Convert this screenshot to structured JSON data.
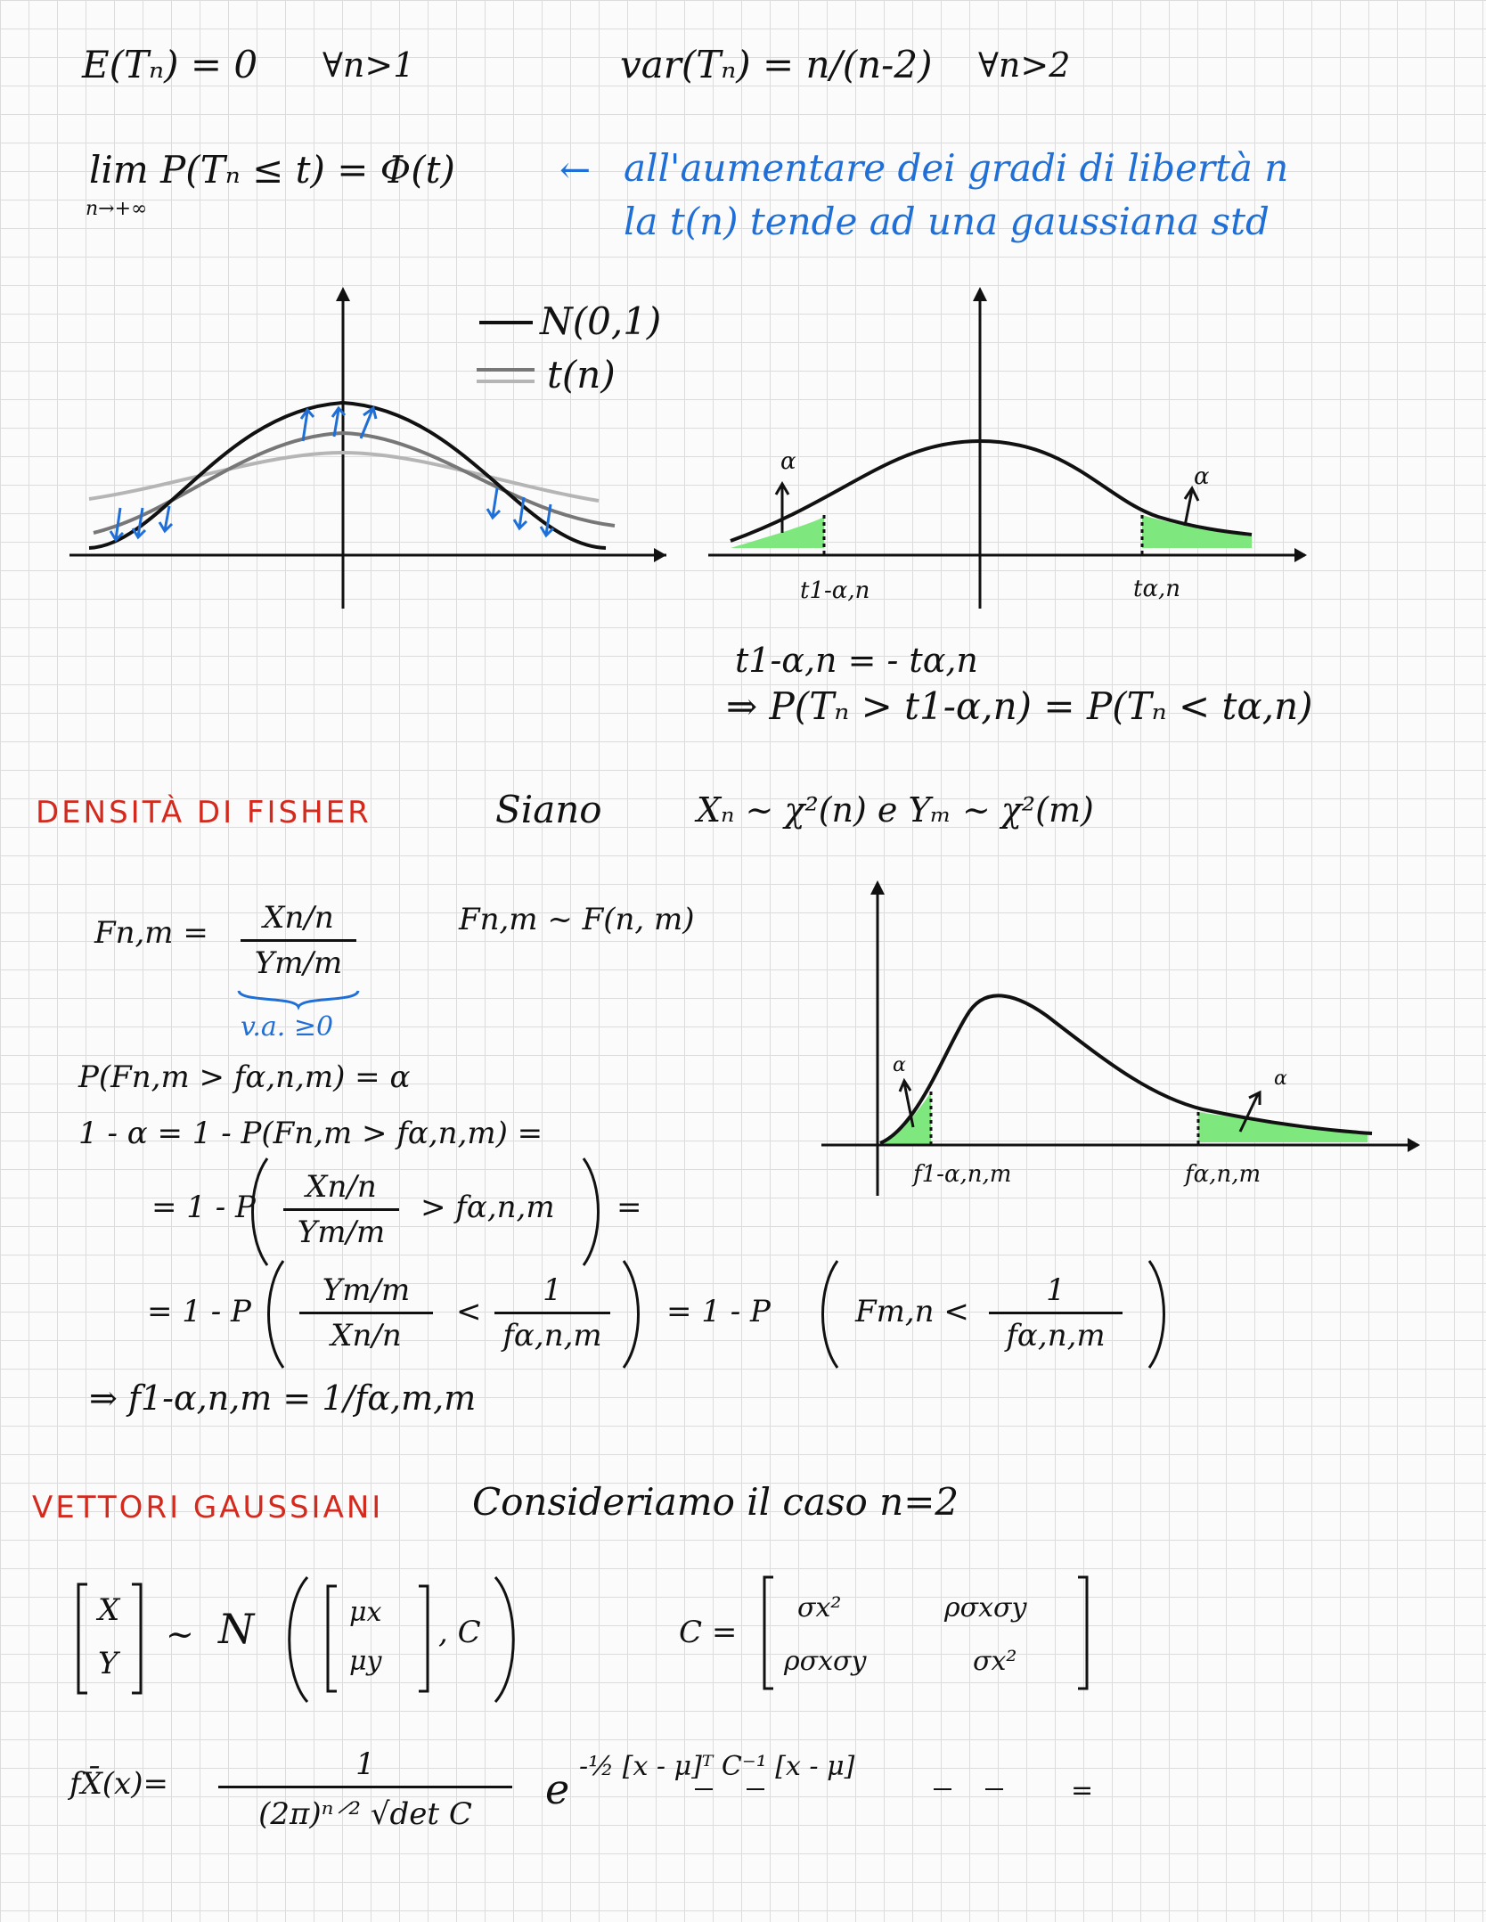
{
  "line1": {
    "expectation": "E(Tₙ) = 0",
    "expectation_cond": "∀n>1",
    "variance": "var(Tₙ) = n/(n-2)",
    "variance_cond": "∀n>2"
  },
  "limit": {
    "expr": "lim P(Tₙ ≤ t) = Φ(t)",
    "sub": "n→+∞",
    "arrow": "←",
    "note_line1": "all'aumentare dei gradi di libertà n",
    "note_line2": "la t(n) tende ad una gaussiana std"
  },
  "plot1": {
    "legend_normal": "N(0,1)",
    "legend_t": "t(n)"
  },
  "plot2": {
    "alpha_left": "α",
    "alpha_right": "α",
    "tick_left": "t1-α,n",
    "tick_right": "tα,n",
    "relation1": "t1-α,n = - tα,n",
    "relation2": "⇒ P(Tₙ > t1-α,n) = P(Tₙ < tα,n)"
  },
  "fisher": {
    "heading": "DENSITÀ DI FISHER",
    "siano": "Siano",
    "def": "Xₙ ~ χ²(n)  e  Yₘ ~ χ²(m)",
    "f_lhs": "Fn,m =",
    "f_num": "Xn/n",
    "f_den": "Ym/m",
    "va": "v.a. ≥0",
    "f_dist": "Fn,m ~ F(n, m)",
    "p_def": "P(Fn,m > fα,n,m) = α",
    "step1": "1 - α = 1 - P(Fn,m > fα,n,m) =",
    "step2_pre": "= 1 - P",
    "step2_num": "Xn/n",
    "step2_den": "Ym/m",
    "step2_post": "> fα,n,m",
    "step2_end": "=",
    "step3_pre": "= 1 - P",
    "step3_num": "Ym/m",
    "step3_den": "Xn/n",
    "step3_mid": "<",
    "step3_one": "1",
    "step3_fden": "fα,n,m",
    "step3_eq": "= 1 - P",
    "step3_f": "Fm,n <",
    "step3_one2": "1",
    "step3_fden2": "fα,n,m",
    "result": "⇒  f1-α,n,m = 1/fα,m,m",
    "plot_alpha_left": "α",
    "plot_alpha_right": "α",
    "plot_tick_left": "f1-α,n,m",
    "plot_tick_right": "fα,n,m"
  },
  "gauss": {
    "heading": "VETTORI GAUSSIANI",
    "intro": "Consideriamo il caso n=2",
    "vec_x": "X",
    "vec_y": "Y",
    "tilde": "~",
    "N": "N",
    "mu_x": "μx",
    "mu_y": "μy",
    "c": ", C",
    "cmat_lhs": "C =",
    "c11": "σx²",
    "c12": "ρσxσy",
    "c21": "ρσxσy",
    "c22": "σx²",
    "density_lhs": "fX̄(x)=",
    "density_num": "1",
    "density_den": "(2π)ⁿ⸍² √det C",
    "density_exp_base": "e",
    "density_exp": "-½ [x - μ]ᵀ C⁻¹ [x - μ]",
    "density_end": "="
  },
  "colors": {
    "ink": "#111111",
    "blue": "#1f6fd6",
    "red": "#d42a1e",
    "green": "#7ee87e",
    "grey_dark": "#777777",
    "grey_light": "#b5b5b5"
  }
}
